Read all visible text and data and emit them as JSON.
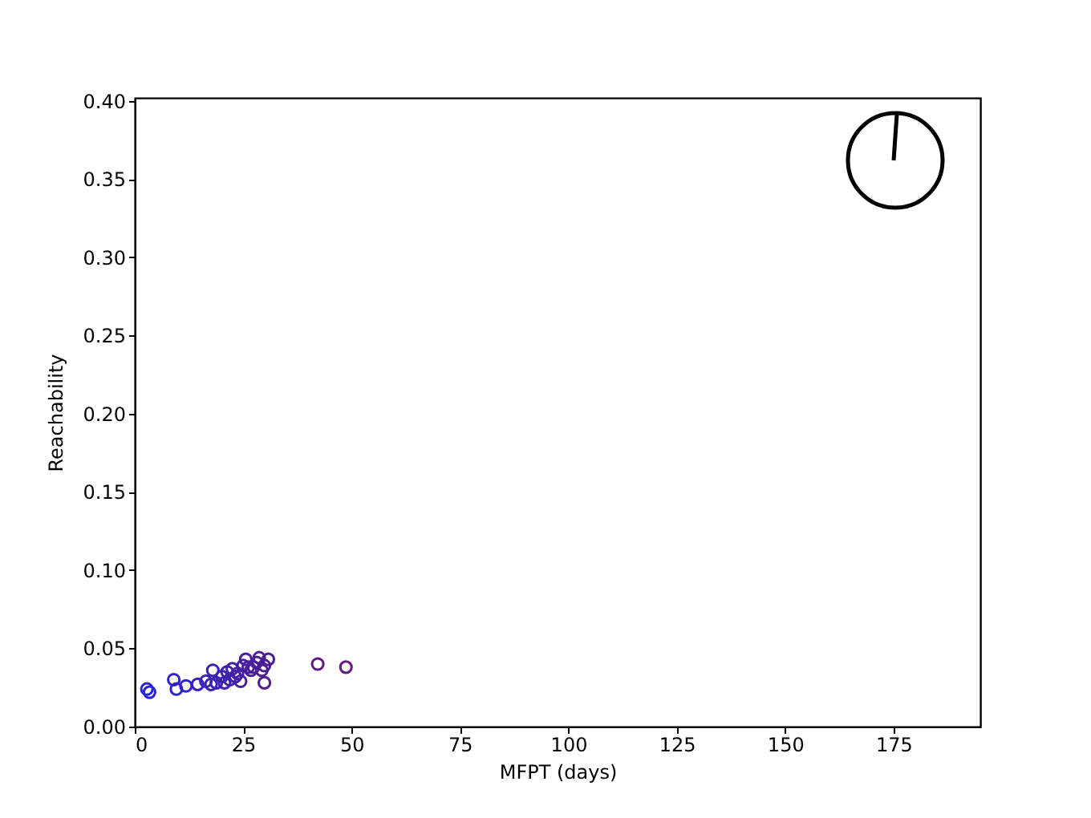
{
  "chart_data": {
    "type": "scatter",
    "xlabel": "MFPT (days)",
    "ylabel": "Reachability",
    "xlim": [
      0,
      195
    ],
    "xticks": [
      0,
      25,
      50,
      75,
      100,
      125,
      150,
      175
    ],
    "ylim": [
      0,
      0.402
    ],
    "yticks": [
      {
        "value": 0,
        "label": "0.00"
      },
      {
        "value": 0.05,
        "label": "0.05"
      },
      {
        "value": 0.1,
        "label": "0.10"
      },
      {
        "value": 0.15,
        "label": "0.15"
      },
      {
        "value": 0.2,
        "label": "0.20"
      },
      {
        "value": 0.25,
        "label": "0.25"
      },
      {
        "value": 0.3,
        "label": "0.30"
      },
      {
        "value": 0.35,
        "label": "0.35"
      },
      {
        "value": 0.4,
        "label": "0.40"
      }
    ],
    "grid": false,
    "marker": "circle",
    "series": [
      {
        "x": [
          2.8,
          3.4,
          9.0,
          9.6,
          11.8,
          14.5,
          16.4,
          17.6,
          18.0,
          18.8,
          20.1,
          20.7,
          21.3,
          21.9,
          22.5,
          23.2,
          23.7,
          24.4,
          25.0,
          25.6,
          26.2,
          26.8,
          27.4,
          28.1,
          28.7,
          29.3,
          29.9,
          29.9,
          30.8,
          42.2,
          48.7
        ],
        "values": [
          0.024,
          0.022,
          0.03,
          0.024,
          0.026,
          0.027,
          0.029,
          0.027,
          0.036,
          0.028,
          0.032,
          0.028,
          0.035,
          0.03,
          0.037,
          0.032,
          0.034,
          0.029,
          0.039,
          0.043,
          0.038,
          0.036,
          0.038,
          0.041,
          0.044,
          0.036,
          0.039,
          0.028,
          0.043,
          0.04,
          0.038
        ],
        "colors": [
          "#2a22d6",
          "#2a22d6",
          "#2f22d0",
          "#2f22d0",
          "#3222ca",
          "#3521c4",
          "#3821bf",
          "#3a21bc",
          "#3b21ba",
          "#3c21b8",
          "#3e20b4",
          "#3f20b2",
          "#4020b0",
          "#4120ae",
          "#421fac",
          "#431faa",
          "#441fa8",
          "#451fa6",
          "#461fa4",
          "#471fa2",
          "#481ea0",
          "#491e9e",
          "#4a1e9c",
          "#4b1e9a",
          "#4c1e98",
          "#4d1e96",
          "#4e1d94",
          "#4e1d94",
          "#4f1d92",
          "#5e1a84",
          "#661a7c"
        ]
      }
    ]
  }
}
